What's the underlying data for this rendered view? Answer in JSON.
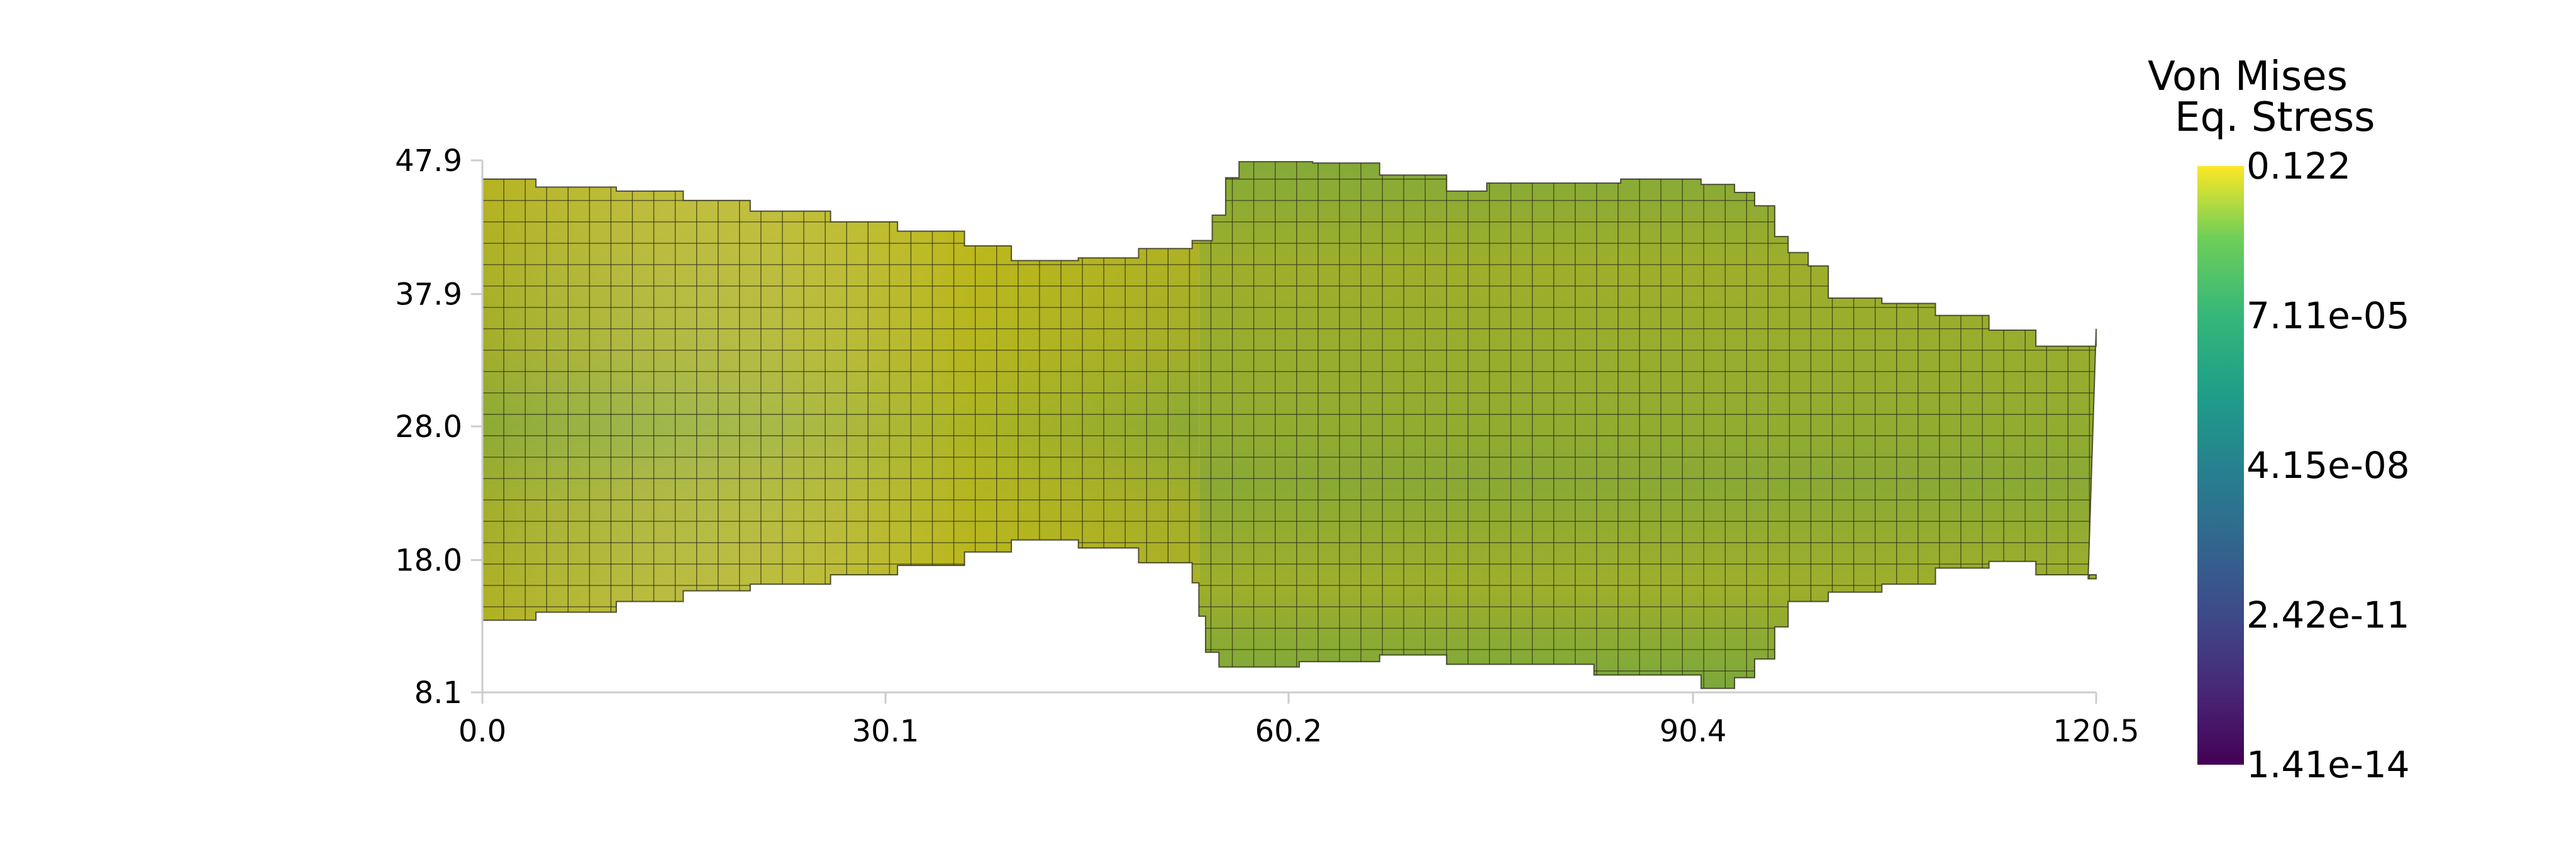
{
  "chart_data": {
    "type": "heatmap",
    "x_ticks": [
      "0.0",
      "30.1",
      "60.2",
      "90.4",
      "120.5"
    ],
    "y_ticks": [
      "8.1",
      "18.0",
      "28.0",
      "37.9",
      "47.9"
    ],
    "xlim": [
      0.0,
      120.5
    ],
    "ylim": [
      8.1,
      47.9
    ],
    "colorbar": {
      "title_line1": "Von Mises",
      "title_line2": "Eq. Stress",
      "labels": [
        "0.122",
        "7.11e-05",
        "4.15e-08",
        "2.42e-11",
        "1.41e-14"
      ],
      "range": [
        1.41e-14,
        0.122
      ],
      "scale": "log",
      "colormap": "viridis"
    },
    "mesh_grid_spacing": 1.6,
    "shape_top_steps": [
      [
        0.0,
        46.5
      ],
      [
        4.0,
        45.9
      ],
      [
        10.0,
        45.6
      ],
      [
        15.0,
        44.9
      ],
      [
        20.0,
        44.1
      ],
      [
        26.0,
        43.3
      ],
      [
        31.0,
        42.6
      ],
      [
        36.0,
        41.5
      ],
      [
        39.5,
        40.4
      ],
      [
        44.5,
        40.6
      ],
      [
        49.0,
        41.3
      ],
      [
        53.0,
        41.9
      ],
      [
        54.5,
        43.8
      ],
      [
        55.5,
        46.6
      ],
      [
        56.5,
        47.8
      ],
      [
        62.0,
        47.7
      ],
      [
        67.0,
        46.8
      ],
      [
        72.0,
        45.6
      ],
      [
        75.0,
        46.2
      ],
      [
        85.0,
        46.5
      ],
      [
        91.0,
        46.1
      ],
      [
        93.5,
        45.5
      ],
      [
        95.0,
        44.5
      ],
      [
        96.5,
        42.2
      ],
      [
        97.5,
        41.0
      ],
      [
        99.0,
        40.0
      ],
      [
        100.5,
        37.6
      ],
      [
        104.5,
        37.2
      ],
      [
        108.5,
        36.3
      ],
      [
        112.5,
        35.2
      ],
      [
        116.0,
        34.0
      ],
      [
        120.5,
        35.3
      ]
    ],
    "shape_bottom_steps": [
      [
        0.0,
        13.5
      ],
      [
        4.0,
        14.1
      ],
      [
        10.0,
        14.9
      ],
      [
        15.0,
        15.7
      ],
      [
        20.0,
        16.2
      ],
      [
        26.0,
        16.9
      ],
      [
        31.0,
        17.6
      ],
      [
        36.0,
        18.6
      ],
      [
        39.5,
        19.5
      ],
      [
        44.5,
        18.9
      ],
      [
        49.0,
        17.8
      ],
      [
        53.0,
        16.3
      ],
      [
        53.5,
        13.8
      ],
      [
        54.0,
        11.1
      ],
      [
        55.0,
        10.0
      ],
      [
        61.0,
        10.4
      ],
      [
        67.0,
        10.9
      ],
      [
        72.0,
        10.2
      ],
      [
        83.0,
        9.4
      ],
      [
        91.0,
        8.4
      ],
      [
        93.5,
        9.2
      ],
      [
        95.0,
        10.6
      ],
      [
        96.5,
        13.0
      ],
      [
        97.5,
        14.9
      ],
      [
        100.5,
        15.6
      ],
      [
        104.5,
        16.2
      ],
      [
        108.5,
        17.4
      ],
      [
        112.5,
        17.9
      ],
      [
        116.0,
        16.9
      ],
      [
        120.5,
        16.6
      ]
    ],
    "stress_field": {
      "low_band_center_y": 29.5,
      "base_color": "#b9b61c",
      "band_color": "#7fa838",
      "right_block_color": "#9bae2a",
      "edge_color": "#62a845"
    }
  }
}
